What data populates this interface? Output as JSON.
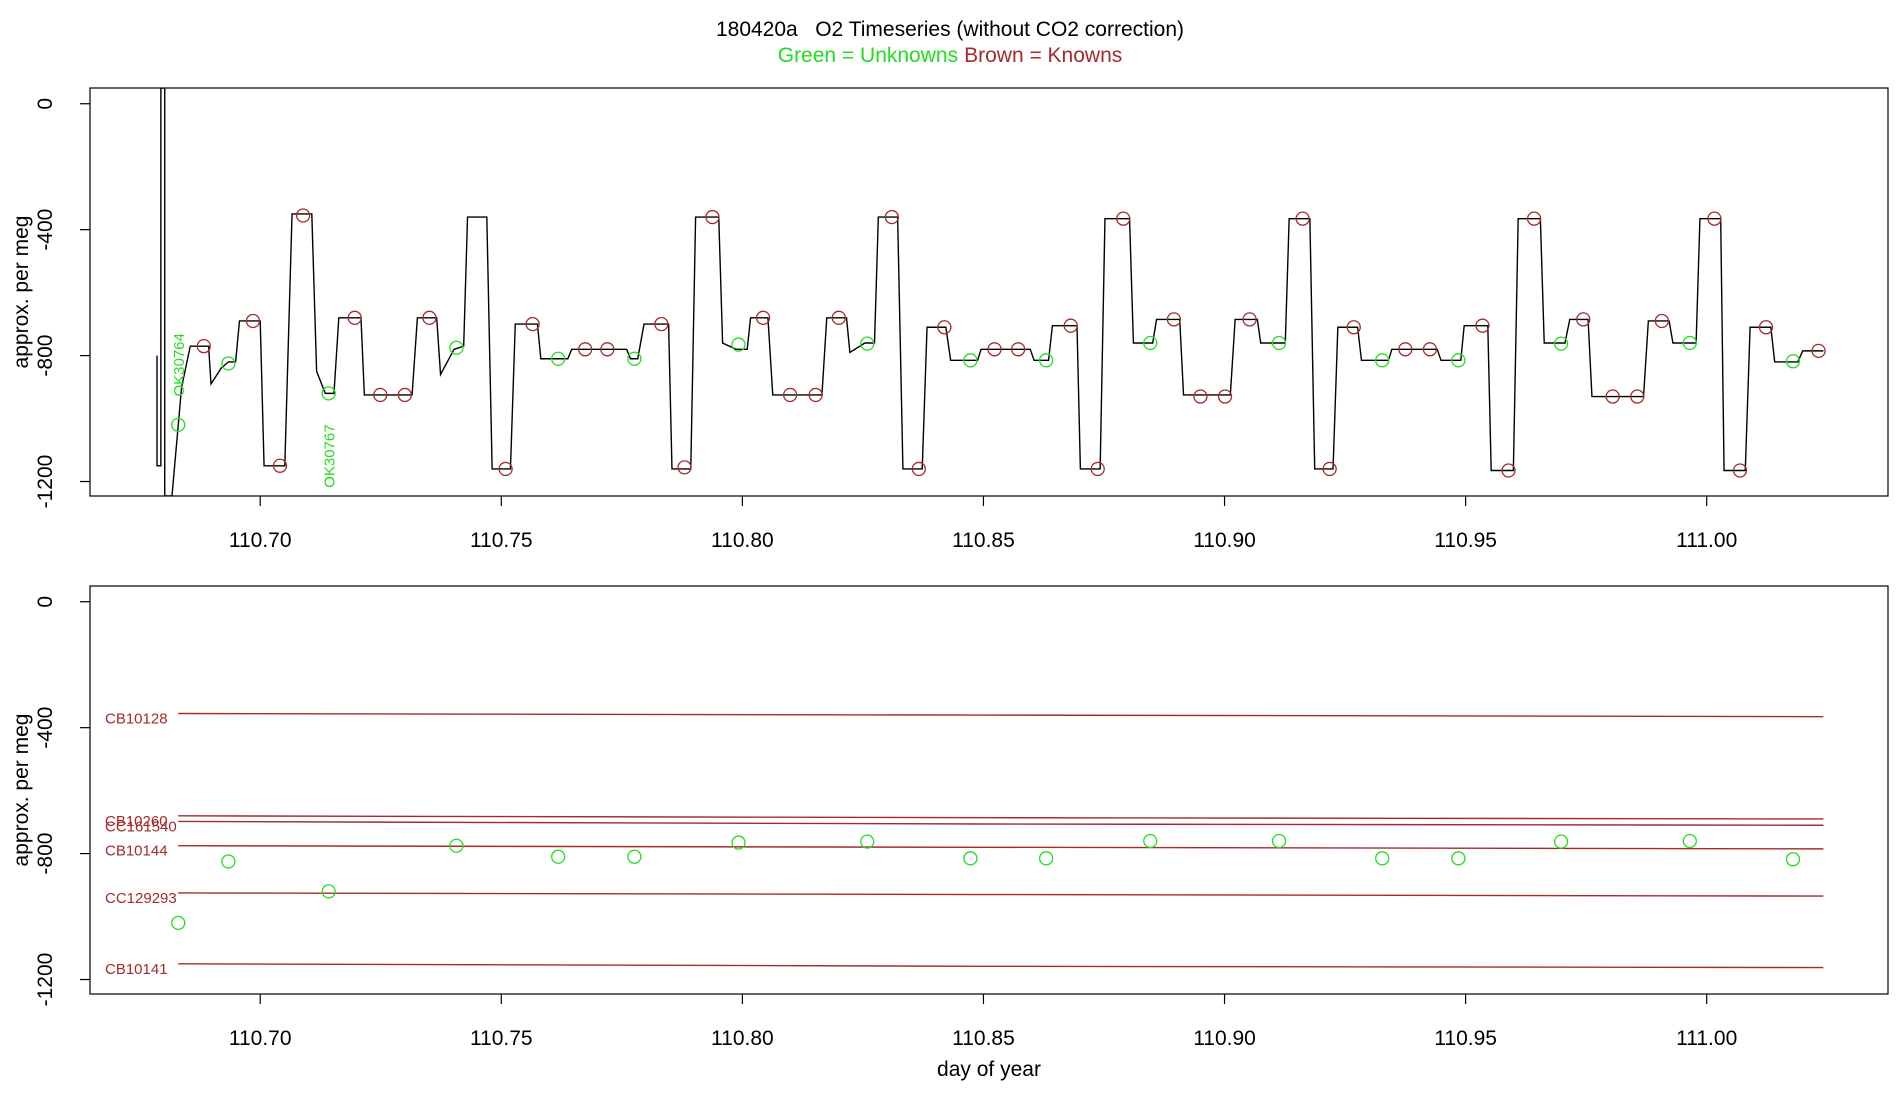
{
  "chart_data": [
    {
      "type": "line",
      "title": "180420a   O2 Timeseries (without CO2 correction)",
      "y_label": "approx. per meg",
      "legend": "top",
      "xlim": [
        110.6647,
        111.0376
      ],
      "ylim": [
        -1246,
        50
      ],
      "xticks": [
        {
          "value": 110.7,
          "label": "110.70"
        },
        {
          "value": 110.75,
          "label": "110.75"
        },
        {
          "value": 110.8,
          "label": "110.80"
        },
        {
          "value": 110.85,
          "label": "110.85"
        },
        {
          "value": 110.9,
          "label": "110.90"
        },
        {
          "value": 110.95,
          "label": "110.95"
        },
        {
          "value": 111.0,
          "label": "111.00"
        }
      ],
      "yticks": [
        0,
        -400,
        -800,
        -1200
      ],
      "series": [
        {
          "mode": "line",
          "color": "#000000",
          "x": [
            110.6786,
            110.6786,
            110.6794,
            110.6794,
            110.6802,
            110.6802,
            110.6817,
            110.6837,
            110.6855,
            110.6893,
            110.6898,
            110.6919,
            110.6934,
            110.6949,
            110.6957,
            110.7,
            110.7008,
            110.7051,
            110.7066,
            110.7107,
            110.7117,
            110.7135,
            110.7153,
            110.7163,
            110.7209,
            110.7216,
            110.7315,
            110.7326,
            110.7366,
            110.7374,
            110.7402,
            110.7422,
            110.743,
            110.747,
            110.7481,
            110.7519,
            110.7529,
            110.7575,
            110.7582,
            110.7638,
            110.7646,
            110.776,
            110.7768,
            110.7783,
            110.7796,
            110.7847,
            110.7854,
            110.7893,
            110.7903,
            110.7951,
            110.7959,
            110.7987,
            110.801,
            110.8017,
            110.8053,
            110.8063,
            110.8165,
            110.8175,
            110.8216,
            110.8223,
            110.8254,
            110.8274,
            110.8282,
            110.8322,
            110.8333,
            110.8373,
            110.8383,
            110.8422,
            110.8432,
            110.8488,
            110.8495,
            110.8597,
            110.8605,
            110.8635,
            110.8643,
            110.8694,
            110.8701,
            110.8742,
            110.8752,
            110.8803,
            110.8811,
            110.8851,
            110.8859,
            110.8907,
            110.8915,
            110.9012,
            110.9022,
            110.9068,
            110.9075,
            110.9126,
            110.9134,
            110.9177,
            110.9187,
            110.9225,
            110.9235,
            110.9276,
            110.9284,
            110.934,
            110.9347,
            110.9441,
            110.9449,
            110.949,
            110.9497,
            110.9546,
            110.9553,
            110.9599,
            110.9609,
            110.9655,
            110.9663,
            110.9706,
            110.9716,
            110.9754,
            110.9762,
            110.9869,
            110.9879,
            110.9922,
            110.993,
            110.9978,
            110.9986,
            111.0029,
            111.0036,
            111.008,
            111.009,
            111.0133,
            111.0141,
            111.0189,
            111.0199,
            111.0242
          ],
          "values": [
            -800,
            -1150,
            -1150,
            50,
            50,
            -1246,
            -1246,
            -900,
            -770,
            -770,
            -890,
            -840,
            -820,
            -820,
            -690,
            -690,
            -1150,
            -1150,
            -350,
            -350,
            -850,
            -920,
            -920,
            -680,
            -680,
            -925,
            -925,
            -680,
            -680,
            -860,
            -780,
            -770,
            -360,
            -360,
            -1160,
            -1160,
            -700,
            -700,
            -810,
            -810,
            -780,
            -780,
            -810,
            -810,
            -700,
            -700,
            -1160,
            -1160,
            -360,
            -360,
            -760,
            -780,
            -780,
            -680,
            -680,
            -925,
            -925,
            -680,
            -680,
            -790,
            -760,
            -760,
            -360,
            -360,
            -1160,
            -1160,
            -710,
            -710,
            -815,
            -815,
            -780,
            -780,
            -815,
            -815,
            -705,
            -705,
            -1160,
            -1160,
            -365,
            -365,
            -760,
            -760,
            -685,
            -685,
            -925,
            -925,
            -685,
            -685,
            -760,
            -760,
            -365,
            -365,
            -1160,
            -1160,
            -710,
            -710,
            -815,
            -815,
            -780,
            -780,
            -815,
            -815,
            -705,
            -705,
            -1165,
            -1165,
            -365,
            -365,
            -760,
            -760,
            -685,
            -685,
            -930,
            -930,
            -690,
            -690,
            -760,
            -760,
            -365,
            -365,
            -1165,
            -1165,
            -710,
            -710,
            -820,
            -820,
            -785,
            -785
          ]
        },
        {
          "mode": "markers",
          "name": "Green = Unknowns",
          "color": "#22dd22",
          "x": [
            110.683,
            110.6934,
            110.7142,
            110.7407,
            110.7618,
            110.7776,
            110.7992,
            110.8259,
            110.8473,
            110.863,
            110.8846,
            110.9113,
            110.9327,
            110.9485,
            110.9698,
            110.9965,
            111.0179
          ],
          "values": [
            -1020,
            -825,
            -920,
            -775,
            -810,
            -810,
            -765,
            -762,
            -815,
            -815,
            -760,
            -760,
            -815,
            -815,
            -762,
            -760,
            -818
          ]
        },
        {
          "mode": "markers",
          "name": "Brown = Knowns",
          "color": "#a52a2a",
          "x": [
            110.6883,
            110.6985,
            110.7041,
            110.7089,
            110.7196,
            110.7249,
            110.73,
            110.7351,
            110.7509,
            110.7565,
            110.7674,
            110.772,
            110.7832,
            110.788,
            110.7938,
            110.8043,
            110.8099,
            110.8152,
            110.82,
            110.831,
            110.8366,
            110.8419,
            110.8523,
            110.8572,
            110.8681,
            110.8737,
            110.879,
            110.8895,
            110.895,
            110.9001,
            110.9052,
            110.9162,
            110.9218,
            110.9268,
            110.9375,
            110.9426,
            110.9535,
            110.9589,
            110.9642,
            110.9744,
            110.9805,
            110.9856,
            110.9907,
            111.0016,
            111.0069,
            111.0123,
            111.0232
          ],
          "values": [
            -770,
            -690,
            -1150,
            -355,
            -680,
            -925,
            -925,
            -680,
            -1160,
            -700,
            -780,
            -780,
            -700,
            -1155,
            -360,
            -680,
            -925,
            -925,
            -680,
            -360,
            -1160,
            -710,
            -780,
            -780,
            -705,
            -1160,
            -365,
            -685,
            -930,
            -930,
            -685,
            -365,
            -1160,
            -710,
            -780,
            -780,
            -705,
            -1165,
            -365,
            -685,
            -930,
            -930,
            -690,
            -365,
            -1165,
            -710,
            -785
          ]
        }
      ],
      "annotations": [
        {
          "text": "OK30764",
          "x": 110.683,
          "y": -930,
          "color": "#22dd22"
        },
        {
          "text": "OK30767",
          "x": 110.7142,
          "y": -1220,
          "color": "#22dd22"
        }
      ]
    },
    {
      "type": "line",
      "y_label": "approx. per meg",
      "x_label": "day of year",
      "legend": "inline",
      "xlim": [
        110.6647,
        111.0376
      ],
      "ylim": [
        -1246,
        50
      ],
      "xticks": [
        {
          "value": 110.7,
          "label": "110.70"
        },
        {
          "value": 110.75,
          "label": "110.75"
        },
        {
          "value": 110.8,
          "label": "110.80"
        },
        {
          "value": 110.85,
          "label": "110.85"
        },
        {
          "value": 110.9,
          "label": "110.90"
        },
        {
          "value": 110.95,
          "label": "110.95"
        },
        {
          "value": 111.0,
          "label": "111.00"
        }
      ],
      "yticks": [
        0,
        -400,
        -800,
        -1200
      ],
      "series": [
        {
          "mode": "line",
          "name": "CB10128",
          "color": "#a52a2a",
          "x": [
            110.683,
            110.85,
            111.0242
          ],
          "values": [
            -355,
            -360,
            -365
          ]
        },
        {
          "mode": "line",
          "name": "CB10260",
          "color": "#a52a2a",
          "x": [
            110.683,
            110.85,
            111.0242
          ],
          "values": [
            -680,
            -686,
            -690
          ]
        },
        {
          "mode": "line",
          "name": "CC161540",
          "color": "#a52a2a",
          "x": [
            110.683,
            110.85,
            111.0242
          ],
          "values": [
            -698,
            -706,
            -710
          ]
        },
        {
          "mode": "line",
          "name": "CB10144",
          "color": "#a52a2a",
          "x": [
            110.683,
            110.85,
            111.0242
          ],
          "values": [
            -775,
            -780,
            -785
          ]
        },
        {
          "mode": "line",
          "name": "CC129293",
          "color": "#a52a2a",
          "x": [
            110.683,
            110.85,
            111.0242
          ],
          "values": [
            -925,
            -930,
            -935
          ]
        },
        {
          "mode": "line",
          "name": "CB10141",
          "color": "#a52a2a",
          "x": [
            110.683,
            110.85,
            111.0242
          ],
          "values": [
            -1150,
            -1158,
            -1162
          ]
        },
        {
          "mode": "markers",
          "color": "#22dd22",
          "x": [
            110.683,
            110.6934,
            110.7142,
            110.7407,
            110.7618,
            110.7776,
            110.7992,
            110.8259,
            110.8473,
            110.863,
            110.8846,
            110.9113,
            110.9327,
            110.9485,
            110.9698,
            110.9965,
            111.0179
          ],
          "values": [
            -1020,
            -825,
            -920,
            -775,
            -810,
            -810,
            -765,
            -762,
            -815,
            -815,
            -760,
            -760,
            -815,
            -815,
            -762,
            -760,
            -818
          ]
        }
      ]
    }
  ]
}
